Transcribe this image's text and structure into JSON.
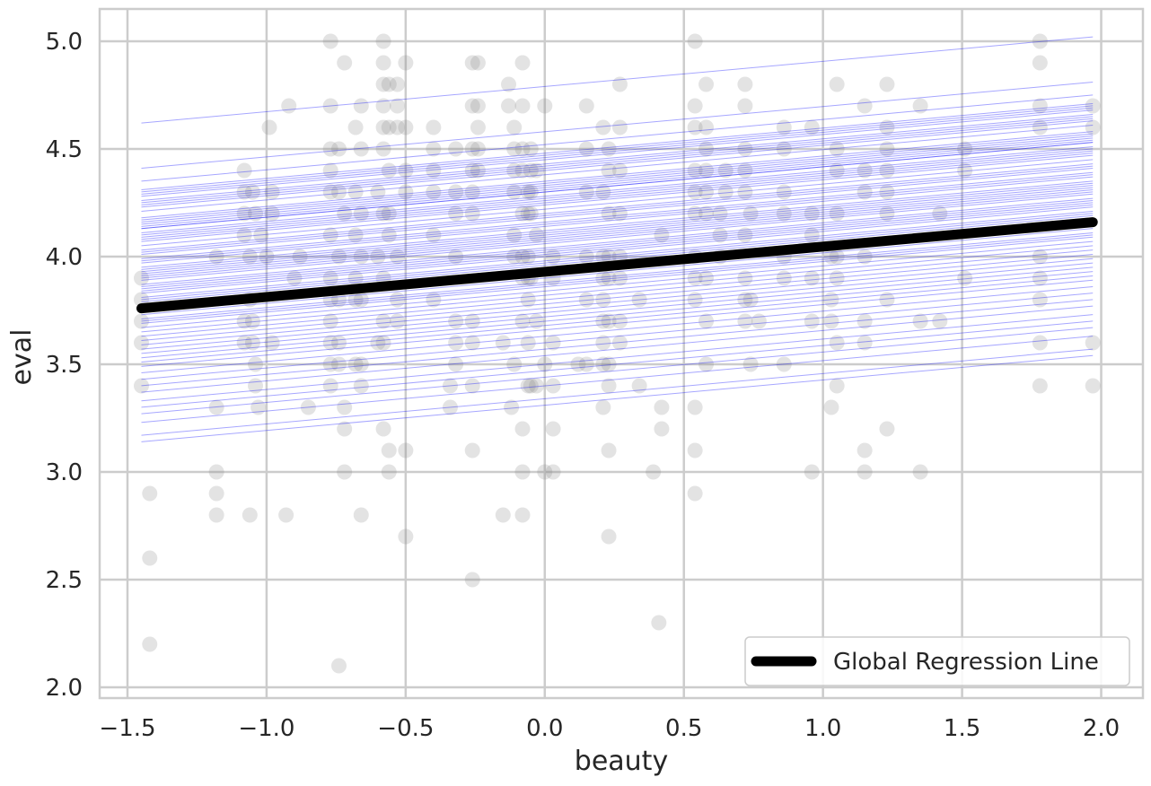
{
  "chart_data": {
    "type": "scatter",
    "xlabel": "beauty",
    "ylabel": "eval",
    "xlim": [
      -1.6,
      2.15
    ],
    "ylim": [
      1.95,
      5.15
    ],
    "xticks": [
      -1.5,
      -1.0,
      -0.5,
      0.0,
      0.5,
      1.0,
      1.5,
      2.0
    ],
    "xtick_labels": [
      "−1.5",
      "−1.0",
      "−0.5",
      "0.0",
      "0.5",
      "1.0",
      "1.5",
      "2.0"
    ],
    "yticks": [
      2.0,
      2.5,
      3.0,
      3.5,
      4.0,
      4.5,
      5.0
    ],
    "ytick_labels": [
      "2.0",
      "2.5",
      "3.0",
      "3.5",
      "4.0",
      "4.5",
      "5.0"
    ],
    "grid": true,
    "legend": {
      "placement": "bottom-right",
      "entries": [
        "Global Regression Line"
      ]
    },
    "colors": {
      "points": "#808080",
      "group_lines": "#0000ff",
      "global_line": "#000000",
      "grid": "#cccccc"
    },
    "global_line": {
      "x": [
        -1.45,
        1.97
      ],
      "y": [
        3.76,
        4.16
      ]
    },
    "group_slope": 0.117,
    "group_x_range": [
      -1.45,
      1.97
    ],
    "group_intercepts": [
      4.79,
      4.58,
      4.52,
      4.48,
      4.47,
      4.46,
      4.45,
      4.43,
      4.42,
      4.41,
      4.4,
      4.38,
      4.35,
      4.34,
      4.33,
      4.32,
      4.31,
      4.3,
      4.3,
      4.28,
      4.27,
      4.26,
      4.25,
      4.24,
      4.22,
      4.2,
      4.19,
      4.18,
      4.16,
      4.15,
      4.14,
      4.12,
      4.11,
      4.1,
      4.09,
      4.08,
      4.07,
      4.06,
      4.04,
      4.03,
      4.02,
      4.01,
      4.0,
      3.98,
      3.97,
      3.96,
      3.95,
      3.94,
      3.92,
      3.91,
      3.9,
      3.88,
      3.87,
      3.86,
      3.84,
      3.82,
      3.8,
      3.78,
      3.76,
      3.74,
      3.72,
      3.7,
      3.68,
      3.66,
      3.63,
      3.6,
      3.57,
      3.54,
      3.5,
      3.47,
      3.44,
      3.4,
      3.34,
      3.31
    ],
    "points": [
      [
        -1.45,
        3.9
      ],
      [
        -1.45,
        3.7
      ],
      [
        -1.45,
        3.6
      ],
      [
        -1.45,
        3.4
      ],
      [
        -1.45,
        3.8
      ],
      [
        -1.42,
        2.9
      ],
      [
        -1.42,
        2.6
      ],
      [
        -1.42,
        2.2
      ],
      [
        -1.18,
        4.0
      ],
      [
        -1.18,
        3.3
      ],
      [
        -1.18,
        3.0
      ],
      [
        -1.18,
        2.9
      ],
      [
        -1.18,
        2.8
      ],
      [
        -1.08,
        4.4
      ],
      [
        -1.08,
        4.3
      ],
      [
        -1.08,
        4.2
      ],
      [
        -1.08,
        4.1
      ],
      [
        -1.08,
        3.7
      ],
      [
        -1.08,
        3.6
      ],
      [
        -1.06,
        4.0
      ],
      [
        -1.06,
        3.8
      ],
      [
        -1.06,
        2.8
      ],
      [
        -1.05,
        4.3
      ],
      [
        -1.05,
        3.7
      ],
      [
        -1.05,
        3.6
      ],
      [
        -1.04,
        4.2
      ],
      [
        -1.04,
        3.5
      ],
      [
        -1.04,
        3.4
      ],
      [
        -1.03,
        3.3
      ],
      [
        -1.02,
        4.1
      ],
      [
        -1.0,
        4.0
      ],
      [
        -0.99,
        4.6
      ],
      [
        -0.98,
        4.3
      ],
      [
        -0.98,
        4.2
      ],
      [
        -0.98,
        3.6
      ],
      [
        -0.93,
        2.8
      ],
      [
        -0.92,
        4.7
      ],
      [
        -0.9,
        3.9
      ],
      [
        -0.88,
        4.0
      ],
      [
        -0.85,
        3.3
      ],
      [
        -0.77,
        5.0
      ],
      [
        -0.77,
        4.7
      ],
      [
        -0.77,
        4.5
      ],
      [
        -0.77,
        4.4
      ],
      [
        -0.77,
        4.3
      ],
      [
        -0.77,
        4.1
      ],
      [
        -0.77,
        3.9
      ],
      [
        -0.77,
        3.8
      ],
      [
        -0.77,
        3.7
      ],
      [
        -0.77,
        3.6
      ],
      [
        -0.77,
        3.5
      ],
      [
        -0.77,
        3.4
      ],
      [
        -0.74,
        4.5
      ],
      [
        -0.74,
        4.3
      ],
      [
        -0.74,
        4.0
      ],
      [
        -0.74,
        3.8
      ],
      [
        -0.74,
        3.6
      ],
      [
        -0.74,
        3.5
      ],
      [
        -0.74,
        2.1
      ],
      [
        -0.72,
        4.9
      ],
      [
        -0.72,
        4.2
      ],
      [
        -0.72,
        3.2
      ],
      [
        -0.72,
        3.0
      ],
      [
        -0.72,
        3.3
      ],
      [
        -0.68,
        4.6
      ],
      [
        -0.68,
        4.3
      ],
      [
        -0.68,
        4.1
      ],
      [
        -0.68,
        3.9
      ],
      [
        -0.68,
        3.8
      ],
      [
        -0.68,
        3.5
      ],
      [
        -0.66,
        4.7
      ],
      [
        -0.66,
        4.5
      ],
      [
        -0.66,
        4.2
      ],
      [
        -0.66,
        4.0
      ],
      [
        -0.66,
        3.8
      ],
      [
        -0.66,
        3.5
      ],
      [
        -0.66,
        3.4
      ],
      [
        -0.66,
        2.8
      ],
      [
        -0.6,
        4.3
      ],
      [
        -0.6,
        4.0
      ],
      [
        -0.6,
        3.6
      ],
      [
        -0.58,
        5.0
      ],
      [
        -0.58,
        4.9
      ],
      [
        -0.58,
        4.8
      ],
      [
        -0.58,
        4.7
      ],
      [
        -0.58,
        4.6
      ],
      [
        -0.58,
        4.5
      ],
      [
        -0.58,
        4.2
      ],
      [
        -0.58,
        3.9
      ],
      [
        -0.58,
        3.7
      ],
      [
        -0.58,
        3.6
      ],
      [
        -0.58,
        3.2
      ],
      [
        -0.56,
        4.8
      ],
      [
        -0.56,
        4.6
      ],
      [
        -0.56,
        4.4
      ],
      [
        -0.56,
        4.2
      ],
      [
        -0.56,
        4.1
      ],
      [
        -0.56,
        3.1
      ],
      [
        -0.56,
        3.0
      ],
      [
        -0.53,
        4.8
      ],
      [
        -0.53,
        4.7
      ],
      [
        -0.53,
        4.6
      ],
      [
        -0.53,
        4.0
      ],
      [
        -0.53,
        3.8
      ],
      [
        -0.53,
        3.7
      ],
      [
        -0.5,
        4.9
      ],
      [
        -0.5,
        4.6
      ],
      [
        -0.5,
        4.4
      ],
      [
        -0.5,
        4.3
      ],
      [
        -0.5,
        3.1
      ],
      [
        -0.5,
        2.7
      ],
      [
        -0.4,
        4.6
      ],
      [
        -0.4,
        4.5
      ],
      [
        -0.4,
        4.4
      ],
      [
        -0.4,
        4.3
      ],
      [
        -0.4,
        4.1
      ],
      [
        -0.4,
        3.8
      ],
      [
        -0.32,
        4.5
      ],
      [
        -0.32,
        4.3
      ],
      [
        -0.32,
        4.2
      ],
      [
        -0.32,
        4.0
      ],
      [
        -0.32,
        3.7
      ],
      [
        -0.32,
        3.6
      ],
      [
        -0.32,
        3.5
      ],
      [
        -0.34,
        3.3
      ],
      [
        -0.34,
        3.4
      ],
      [
        -0.26,
        4.9
      ],
      [
        -0.26,
        4.7
      ],
      [
        -0.26,
        4.5
      ],
      [
        -0.26,
        4.4
      ],
      [
        -0.26,
        4.3
      ],
      [
        -0.26,
        4.2
      ],
      [
        -0.26,
        3.7
      ],
      [
        -0.26,
        3.6
      ],
      [
        -0.26,
        3.4
      ],
      [
        -0.26,
        3.1
      ],
      [
        -0.26,
        2.5
      ],
      [
        -0.24,
        4.9
      ],
      [
        -0.24,
        4.7
      ],
      [
        -0.24,
        4.6
      ],
      [
        -0.24,
        4.5
      ],
      [
        -0.24,
        4.4
      ],
      [
        -0.15,
        3.6
      ],
      [
        -0.15,
        2.8
      ],
      [
        -0.13,
        4.8
      ],
      [
        -0.13,
        4.7
      ],
      [
        -0.12,
        3.3
      ],
      [
        -0.11,
        4.6
      ],
      [
        -0.11,
        4.5
      ],
      [
        -0.11,
        4.4
      ],
      [
        -0.11,
        4.3
      ],
      [
        -0.11,
        4.1
      ],
      [
        -0.11,
        4.0
      ],
      [
        -0.11,
        3.5
      ],
      [
        -0.08,
        4.9
      ],
      [
        -0.08,
        4.7
      ],
      [
        -0.08,
        4.5
      ],
      [
        -0.08,
        4.4
      ],
      [
        -0.08,
        4.2
      ],
      [
        -0.08,
        4.0
      ],
      [
        -0.08,
        3.9
      ],
      [
        -0.08,
        3.7
      ],
      [
        -0.08,
        3.2
      ],
      [
        -0.08,
        3.0
      ],
      [
        -0.08,
        2.8
      ],
      [
        -0.06,
        4.3
      ],
      [
        -0.06,
        4.2
      ],
      [
        -0.06,
        4.0
      ],
      [
        -0.06,
        3.9
      ],
      [
        -0.06,
        3.8
      ],
      [
        -0.06,
        3.6
      ],
      [
        -0.06,
        3.4
      ],
      [
        -0.05,
        4.5
      ],
      [
        -0.05,
        4.4
      ],
      [
        -0.05,
        4.3
      ],
      [
        -0.05,
        4.2
      ],
      [
        -0.05,
        3.9
      ],
      [
        -0.05,
        3.4
      ],
      [
        -0.03,
        4.4
      ],
      [
        -0.03,
        4.1
      ],
      [
        -0.03,
        3.7
      ],
      [
        -0.03,
        3.4
      ],
      [
        0.0,
        4.7
      ],
      [
        0.0,
        3.5
      ],
      [
        0.0,
        3.0
      ],
      [
        0.03,
        4.0
      ],
      [
        0.03,
        3.9
      ],
      [
        0.03,
        3.6
      ],
      [
        0.03,
        3.4
      ],
      [
        0.03,
        3.2
      ],
      [
        0.03,
        3.0
      ],
      [
        0.12,
        3.5
      ],
      [
        0.15,
        4.7
      ],
      [
        0.15,
        4.5
      ],
      [
        0.15,
        4.3
      ],
      [
        0.15,
        4.0
      ],
      [
        0.15,
        3.8
      ],
      [
        0.15,
        3.5
      ],
      [
        0.21,
        4.6
      ],
      [
        0.21,
        4.3
      ],
      [
        0.21,
        4.0
      ],
      [
        0.21,
        3.9
      ],
      [
        0.21,
        3.8
      ],
      [
        0.21,
        3.7
      ],
      [
        0.21,
        3.6
      ],
      [
        0.21,
        3.5
      ],
      [
        0.21,
        3.3
      ],
      [
        0.23,
        4.5
      ],
      [
        0.23,
        4.4
      ],
      [
        0.23,
        4.2
      ],
      [
        0.23,
        4.0
      ],
      [
        0.23,
        3.9
      ],
      [
        0.23,
        3.7
      ],
      [
        0.23,
        3.5
      ],
      [
        0.23,
        3.4
      ],
      [
        0.23,
        3.1
      ],
      [
        0.23,
        2.7
      ],
      [
        0.27,
        4.8
      ],
      [
        0.27,
        4.6
      ],
      [
        0.27,
        4.4
      ],
      [
        0.27,
        4.2
      ],
      [
        0.27,
        4.0
      ],
      [
        0.27,
        3.9
      ],
      [
        0.27,
        3.7
      ],
      [
        0.27,
        3.6
      ],
      [
        0.34,
        3.8
      ],
      [
        0.34,
        3.4
      ],
      [
        0.39,
        3.0
      ],
      [
        0.41,
        2.3
      ],
      [
        0.42,
        4.1
      ],
      [
        0.42,
        3.3
      ],
      [
        0.42,
        3.2
      ],
      [
        0.54,
        5.0
      ],
      [
        0.54,
        4.7
      ],
      [
        0.54,
        4.6
      ],
      [
        0.54,
        4.4
      ],
      [
        0.54,
        4.3
      ],
      [
        0.54,
        4.2
      ],
      [
        0.54,
        4.0
      ],
      [
        0.54,
        3.9
      ],
      [
        0.54,
        3.8
      ],
      [
        0.54,
        3.3
      ],
      [
        0.54,
        3.1
      ],
      [
        0.54,
        2.9
      ],
      [
        0.58,
        4.8
      ],
      [
        0.58,
        4.6
      ],
      [
        0.58,
        4.5
      ],
      [
        0.58,
        4.4
      ],
      [
        0.58,
        4.3
      ],
      [
        0.58,
        4.2
      ],
      [
        0.58,
        3.9
      ],
      [
        0.58,
        3.7
      ],
      [
        0.58,
        3.5
      ],
      [
        0.63,
        4.2
      ],
      [
        0.63,
        4.1
      ],
      [
        0.63,
        4.0
      ],
      [
        0.65,
        4.3
      ],
      [
        0.65,
        4.4
      ],
      [
        0.72,
        4.8
      ],
      [
        0.72,
        4.7
      ],
      [
        0.72,
        4.5
      ],
      [
        0.72,
        4.4
      ],
      [
        0.72,
        4.3
      ],
      [
        0.72,
        4.1
      ],
      [
        0.72,
        3.9
      ],
      [
        0.72,
        3.8
      ],
      [
        0.72,
        3.7
      ],
      [
        0.74,
        4.2
      ],
      [
        0.74,
        3.8
      ],
      [
        0.74,
        3.5
      ],
      [
        0.77,
        3.7
      ],
      [
        0.86,
        4.6
      ],
      [
        0.86,
        4.5
      ],
      [
        0.86,
        4.3
      ],
      [
        0.86,
        4.2
      ],
      [
        0.86,
        4.0
      ],
      [
        0.86,
        3.9
      ],
      [
        0.86,
        3.5
      ],
      [
        0.96,
        4.6
      ],
      [
        0.96,
        4.2
      ],
      [
        0.96,
        4.1
      ],
      [
        0.96,
        3.9
      ],
      [
        0.96,
        3.7
      ],
      [
        0.96,
        3.0
      ],
      [
        1.03,
        4.0
      ],
      [
        1.03,
        3.8
      ],
      [
        1.03,
        3.7
      ],
      [
        1.03,
        3.3
      ],
      [
        1.05,
        4.8
      ],
      [
        1.05,
        4.5
      ],
      [
        1.05,
        4.4
      ],
      [
        1.05,
        4.2
      ],
      [
        1.05,
        4.0
      ],
      [
        1.05,
        3.9
      ],
      [
        1.05,
        3.6
      ],
      [
        1.05,
        3.4
      ],
      [
        1.15,
        4.7
      ],
      [
        1.15,
        4.4
      ],
      [
        1.15,
        4.3
      ],
      [
        1.15,
        4.0
      ],
      [
        1.15,
        3.7
      ],
      [
        1.15,
        3.6
      ],
      [
        1.15,
        3.1
      ],
      [
        1.15,
        3.0
      ],
      [
        1.23,
        4.8
      ],
      [
        1.23,
        4.6
      ],
      [
        1.23,
        4.5
      ],
      [
        1.23,
        4.4
      ],
      [
        1.23,
        4.3
      ],
      [
        1.23,
        4.2
      ],
      [
        1.23,
        3.8
      ],
      [
        1.23,
        3.2
      ],
      [
        1.35,
        4.7
      ],
      [
        1.35,
        3.7
      ],
      [
        1.35,
        3.0
      ],
      [
        1.42,
        4.2
      ],
      [
        1.42,
        3.7
      ],
      [
        1.51,
        4.5
      ],
      [
        1.51,
        4.4
      ],
      [
        1.51,
        3.9
      ],
      [
        1.78,
        5.0
      ],
      [
        1.78,
        4.9
      ],
      [
        1.78,
        4.7
      ],
      [
        1.78,
        4.6
      ],
      [
        1.78,
        4.0
      ],
      [
        1.78,
        3.9
      ],
      [
        1.78,
        3.8
      ],
      [
        1.78,
        3.6
      ],
      [
        1.78,
        3.4
      ],
      [
        1.97,
        4.7
      ],
      [
        1.97,
        4.6
      ],
      [
        1.97,
        3.6
      ],
      [
        1.97,
        3.4
      ]
    ]
  }
}
